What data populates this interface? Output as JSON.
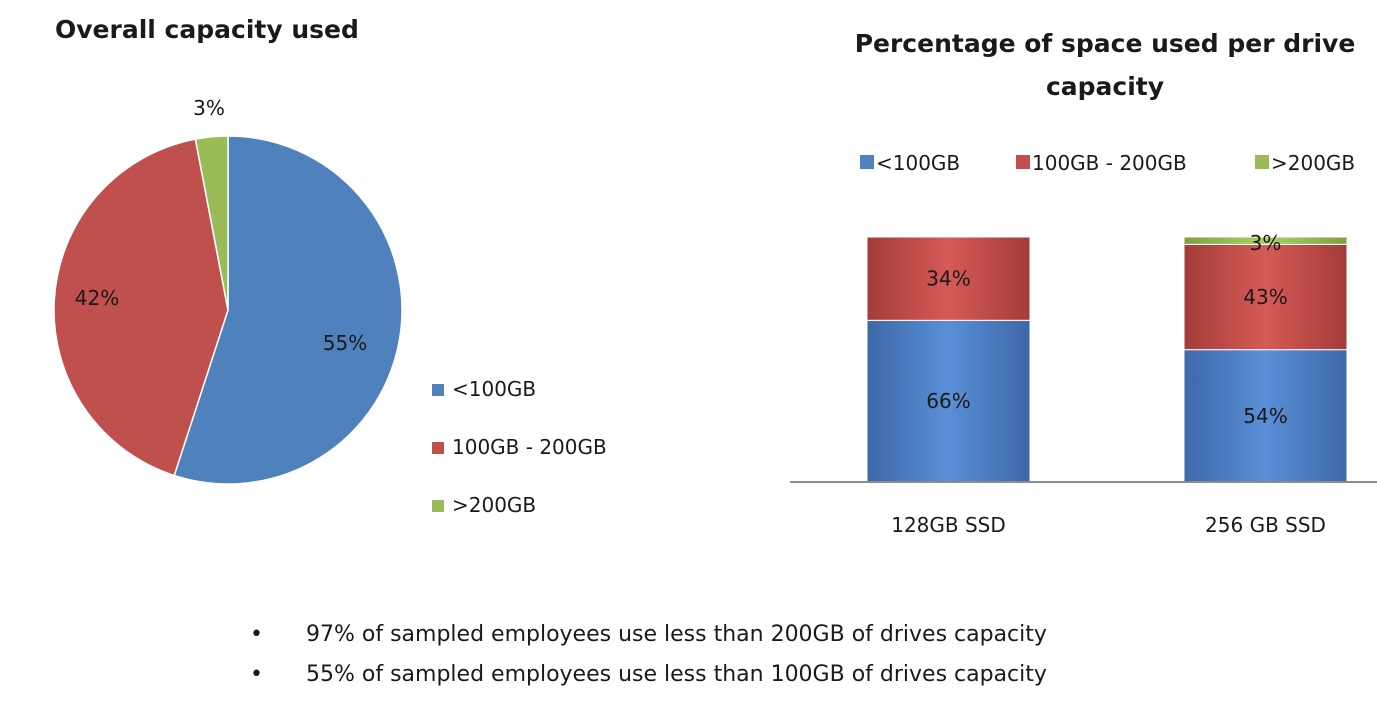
{
  "colors": {
    "blue": "#4f81bd",
    "red": "#c0504d",
    "green": "#9bbb59"
  },
  "chart_data": [
    {
      "type": "pie",
      "title": "Overall capacity used",
      "legend_position": "right",
      "slices": [
        {
          "label": "<100GB",
          "value": 55,
          "data_label": "55%",
          "color": "#4f81bd"
        },
        {
          "label": "100GB - 200GB",
          "value": 42,
          "data_label": "42%",
          "color": "#c0504d"
        },
        {
          "label": ">200GB",
          "value": 3,
          "data_label": "3%",
          "color": "#9bbb59"
        }
      ]
    },
    {
      "type": "bar",
      "stacked": true,
      "title": "Percentage of space used per drive capacity",
      "legend_position": "top",
      "categories": [
        "128GB SSD",
        "256 GB SSD"
      ],
      "series": [
        {
          "name": "<100GB",
          "values": [
            66,
            54
          ],
          "data_labels": [
            "66%",
            "54%"
          ],
          "color": "#4f81bd"
        },
        {
          "name": "100GB - 200GB",
          "values": [
            34,
            43
          ],
          "data_labels": [
            "34%",
            "43%"
          ],
          "color": "#c0504d"
        },
        {
          "name": ">200GB",
          "values": [
            0,
            3
          ],
          "data_labels": [
            "",
            "3%"
          ],
          "color": "#9bbb59"
        }
      ],
      "ylim": [
        0,
        100
      ],
      "grid": false
    }
  ],
  "notes": {
    "bullet": "•",
    "items": [
      "97% of sampled employees use less than 200GB of drives capacity",
      "55% of sampled employees use less than 100GB of drives capacity"
    ]
  }
}
